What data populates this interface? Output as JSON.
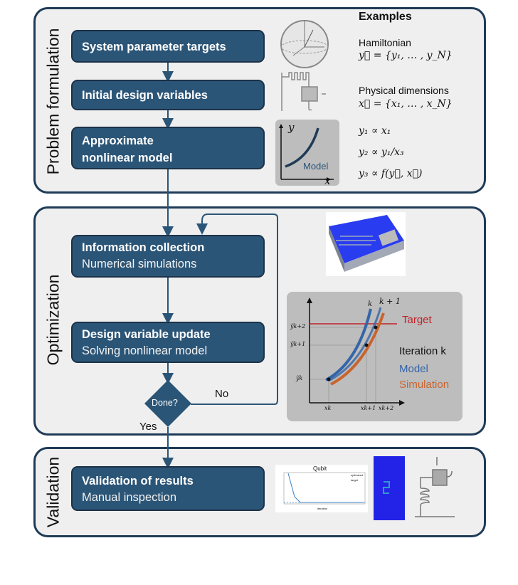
{
  "sections": {
    "problem": {
      "label": "Problem formulation"
    },
    "optimization": {
      "label": "Optimization"
    },
    "validation": {
      "label": "Validation"
    }
  },
  "steps": [
    {
      "title": "System parameter targets"
    },
    {
      "title": "Initial design variables"
    },
    {
      "title": "Approximate nonlinear model"
    },
    {
      "title": "Information collection",
      "subtitle": "Numerical simulations"
    },
    {
      "title": "Design variable update",
      "subtitle": "Solving nonlinear model"
    },
    {
      "title": "Validation of results",
      "subtitle": "Manual inspection"
    }
  ],
  "decision": {
    "label": "Done?",
    "yes": "Yes",
    "no": "No"
  },
  "examples": {
    "heading": "Examples",
    "hamiltonian": "Hamiltonian",
    "y_vec": "y⃗ = {y₁, … , y_N}",
    "physical": "Physical dimensions",
    "x_vec": "x⃗ = {x₁, … , x_N}",
    "rel1": "y₁ ∝  x₁",
    "rel2": "y₂ ∝ y₁/x₃",
    "rel3": "y₃ ∝ f(y⃗, x⃗)"
  },
  "model_icon": {
    "y": "y",
    "x": "x",
    "label": "Model"
  },
  "iteration_chart": {
    "target": "Target",
    "iteration": "Iteration k",
    "model": "Model",
    "simulation": "Simulation",
    "curve_k": "k",
    "curve_k1": "k + 1",
    "yk": "ỹk",
    "yk1": "ỹk+1",
    "yk2": "ỹk+2",
    "xk": "xk",
    "xk1": "xk+1",
    "xk2": "xk+2",
    "colors": {
      "model": "#3565a8",
      "simulation": "#c8642e",
      "target": "#c0222a"
    }
  },
  "qubit_plot": {
    "title": "Qubit",
    "legend": [
      "optimized",
      "target"
    ],
    "xlabel": "iteration"
  },
  "colors": {
    "box": "#2b5577",
    "border": "#1f3b57",
    "panel": "#efefef"
  }
}
